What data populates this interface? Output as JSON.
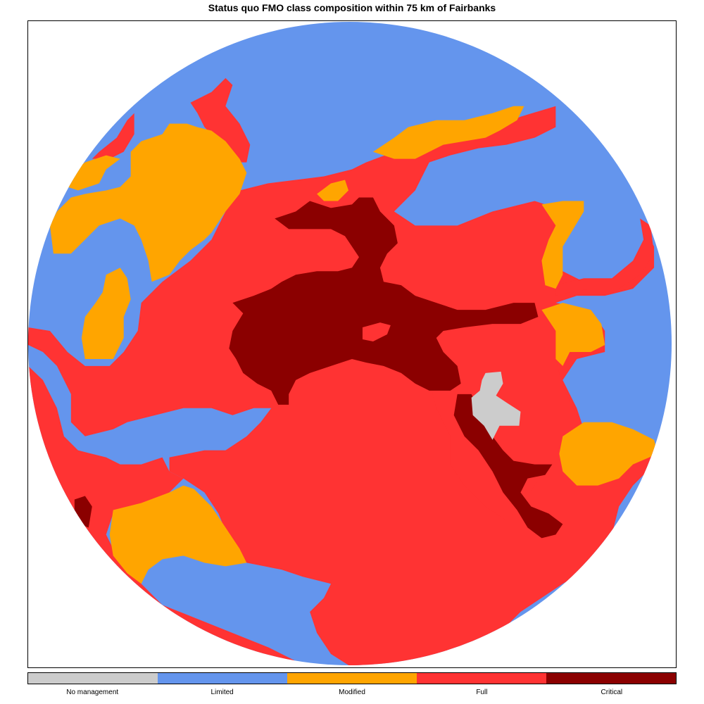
{
  "title": "Status quo FMO class composition within 75 km of Fairbanks",
  "legend": [
    {
      "label": "No management",
      "color": "#cccccc"
    },
    {
      "label": "Limited",
      "color": "#6495ed"
    },
    {
      "label": "Modified",
      "color": "#ffa500"
    },
    {
      "label": "Full",
      "color": "#ff3333"
    },
    {
      "label": "Critical",
      "color": "#8b0000"
    }
  ]
}
